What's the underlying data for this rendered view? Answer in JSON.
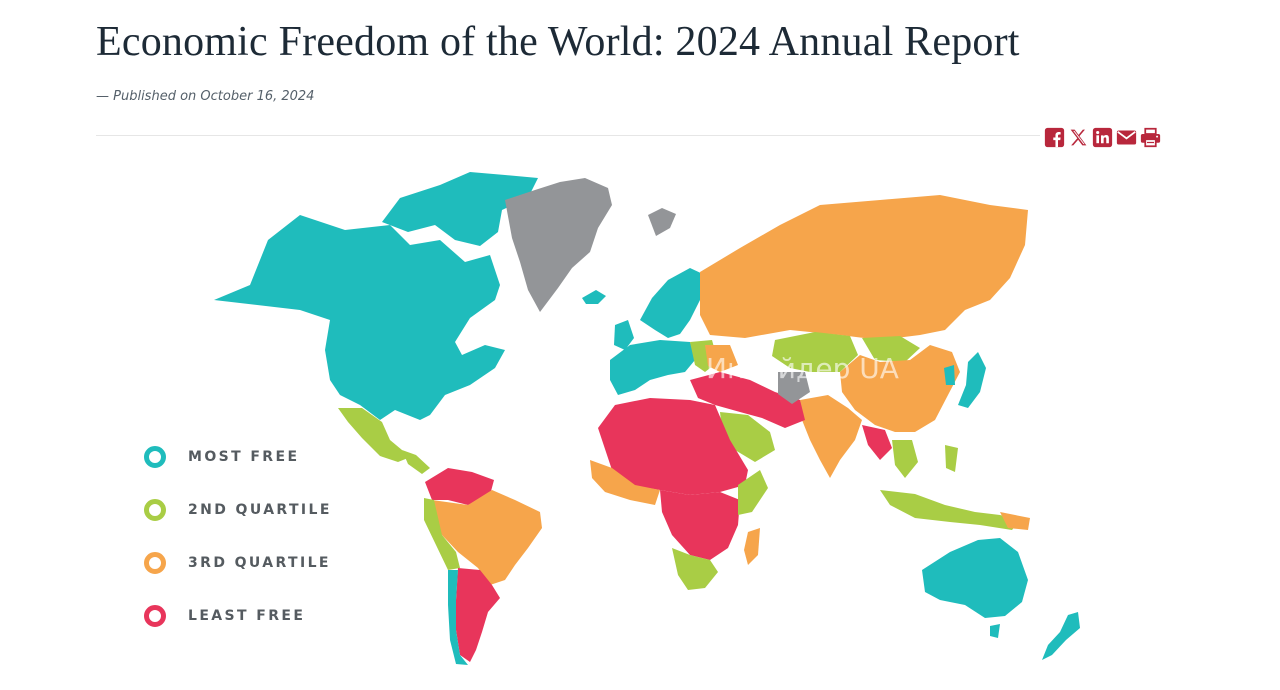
{
  "article": {
    "title": "Economic Freedom of the World: 2024 Annual Report",
    "byline": "— Published on October 16, 2024"
  },
  "share": {
    "color": "#b8273c",
    "icons": [
      "facebook-icon",
      "x-icon",
      "linkedin-icon",
      "email-icon",
      "print-icon"
    ]
  },
  "map": {
    "colors": {
      "most_free": "#1fbcbc",
      "second_quartile": "#a9cd45",
      "third_quartile": "#f6a54b",
      "least_free": "#e8355b",
      "no_data": "#939598"
    },
    "legend": [
      {
        "label": "MOST FREE",
        "color": "#1fbcbc"
      },
      {
        "label": "2ND QUARTILE",
        "color": "#a9cd45"
      },
      {
        "label": "3RD QUARTILE",
        "color": "#f6a54b"
      },
      {
        "label": "LEAST FREE",
        "color": "#e8355b"
      }
    ],
    "watermark": "Инсайдер UA"
  }
}
